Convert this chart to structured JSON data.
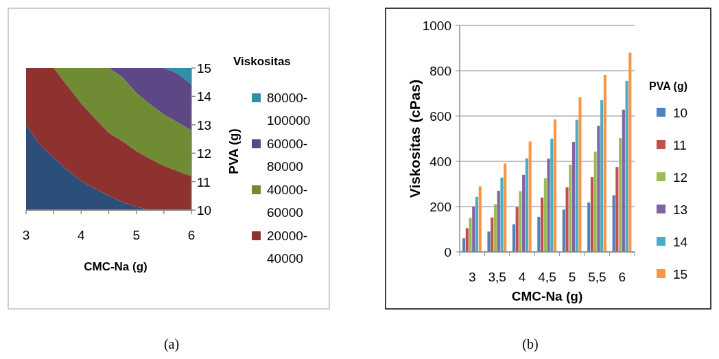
{
  "chart_data": [
    {
      "type": "area",
      "xlabel": "CMC-Na (g)",
      "ylabel": "PVA (g)",
      "legend_title": "Viskositas",
      "legend": "right",
      "annotations": [
        "(a)"
      ],
      "xlim": [
        3,
        6
      ],
      "xticks": [
        3,
        {
          "value": 3.5,
          "label": null
        },
        4,
        {
          "value": 4.5,
          "label": null
        },
        5,
        {
          "value": 5.5,
          "label": null
        },
        6
      ],
      "ylim": [
        10,
        15
      ],
      "yticks": [
        10,
        11,
        12,
        13,
        14,
        15
      ],
      "x": [
        3,
        3.25,
        3.5,
        3.75,
        4,
        4.25,
        4.5,
        4.75,
        5,
        5.25,
        5.5,
        5.75,
        6
      ],
      "series": [
        {
          "name": "80000-100000",
          "color": "#2f8fa6",
          "values": [
            15,
            15,
            15,
            15,
            15,
            15,
            15,
            15,
            15,
            15,
            15,
            15,
            15
          ]
        },
        {
          "name": "60000-80000",
          "color": "#5e4785",
          "values": [
            15,
            15,
            15,
            15,
            15,
            15,
            15,
            15,
            15,
            15,
            15,
            14.8,
            14.42
          ]
        },
        {
          "name": "40000-60000",
          "color": "#6f8c35",
          "values": [
            15,
            15,
            15,
            15,
            15,
            15,
            15,
            14.67,
            14.12,
            13.72,
            13.36,
            13.08,
            12.8
          ]
        },
        {
          "name": "20000-40000",
          "color": "#8e3230",
          "values": [
            15,
            15,
            15,
            14.37,
            13.75,
            13.22,
            12.72,
            12.42,
            12.08,
            11.8,
            11.56,
            11.37,
            11.19
          ]
        },
        {
          "color": "#2b4f78",
          "values": [
            13,
            12.3,
            11.85,
            11.4,
            11.03,
            10.75,
            10.5,
            10.28,
            10.12,
            10,
            10,
            10,
            10
          ]
        }
      ]
    },
    {
      "type": "bar",
      "xlabel": "CMC-Na (g)",
      "ylabel": "Viskositas (cPas)",
      "legend_title": "PVA (g)",
      "legend": "right",
      "grid": "y",
      "annotations": [
        "(b)"
      ],
      "categories": [
        "3",
        "3,5",
        "4",
        "4,5",
        "5",
        "5,5",
        "6"
      ],
      "ylim": [
        0,
        1000
      ],
      "yticks": [
        0,
        200,
        400,
        600,
        800,
        1000
      ],
      "series": [
        {
          "name": "10",
          "color": "#4f81bd",
          "values": [
            60,
            90,
            122,
            155,
            187,
            218,
            250
          ]
        },
        {
          "name": "11",
          "color": "#c0504d",
          "values": [
            105,
            152,
            197,
            240,
            285,
            330,
            375
          ]
        },
        {
          "name": "12",
          "color": "#9bbb59",
          "values": [
            150,
            210,
            268,
            326,
            385,
            443,
            503
          ]
        },
        {
          "name": "13",
          "color": "#8064a2",
          "values": [
            200,
            270,
            340,
            412,
            485,
            557,
            628
          ]
        },
        {
          "name": "14",
          "color": "#4bacc6",
          "values": [
            243,
            328,
            413,
            500,
            583,
            670,
            755
          ]
        },
        {
          "name": "15",
          "color": "#f79646",
          "values": [
            290,
            390,
            487,
            585,
            683,
            782,
            880
          ]
        }
      ]
    }
  ]
}
